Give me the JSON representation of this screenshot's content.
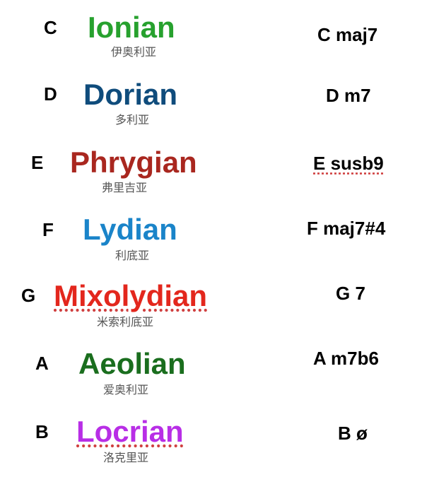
{
  "modes": [
    {
      "root": "C",
      "name": "Ionian",
      "name_cn": "伊奥利亚",
      "chord": "C maj7",
      "color": "#27a12e"
    },
    {
      "root": "D",
      "name": "Dorian",
      "name_cn": "多利亚",
      "chord": "D m7",
      "color": "#0f4c7c"
    },
    {
      "root": "E",
      "name": "Phrygian",
      "name_cn": "弗里吉亚",
      "chord": "E susb9",
      "color": "#a9271f"
    },
    {
      "root": "F",
      "name": "Lydian",
      "name_cn": "利底亚",
      "chord": "F maj7#4",
      "color": "#1a84c9"
    },
    {
      "root": "G",
      "name": "Mixolydian",
      "name_cn": "米索利底亚",
      "chord": "G 7",
      "color": "#e3271d"
    },
    {
      "root": "A",
      "name": "Aeolian",
      "name_cn": "爱奥利亚",
      "chord": "A m7b6",
      "color": "#1a6e1e"
    },
    {
      "root": "B",
      "name": "Locrian",
      "name_cn": "洛克里亚",
      "chord": "B ø",
      "color": "#b82ee6"
    }
  ]
}
